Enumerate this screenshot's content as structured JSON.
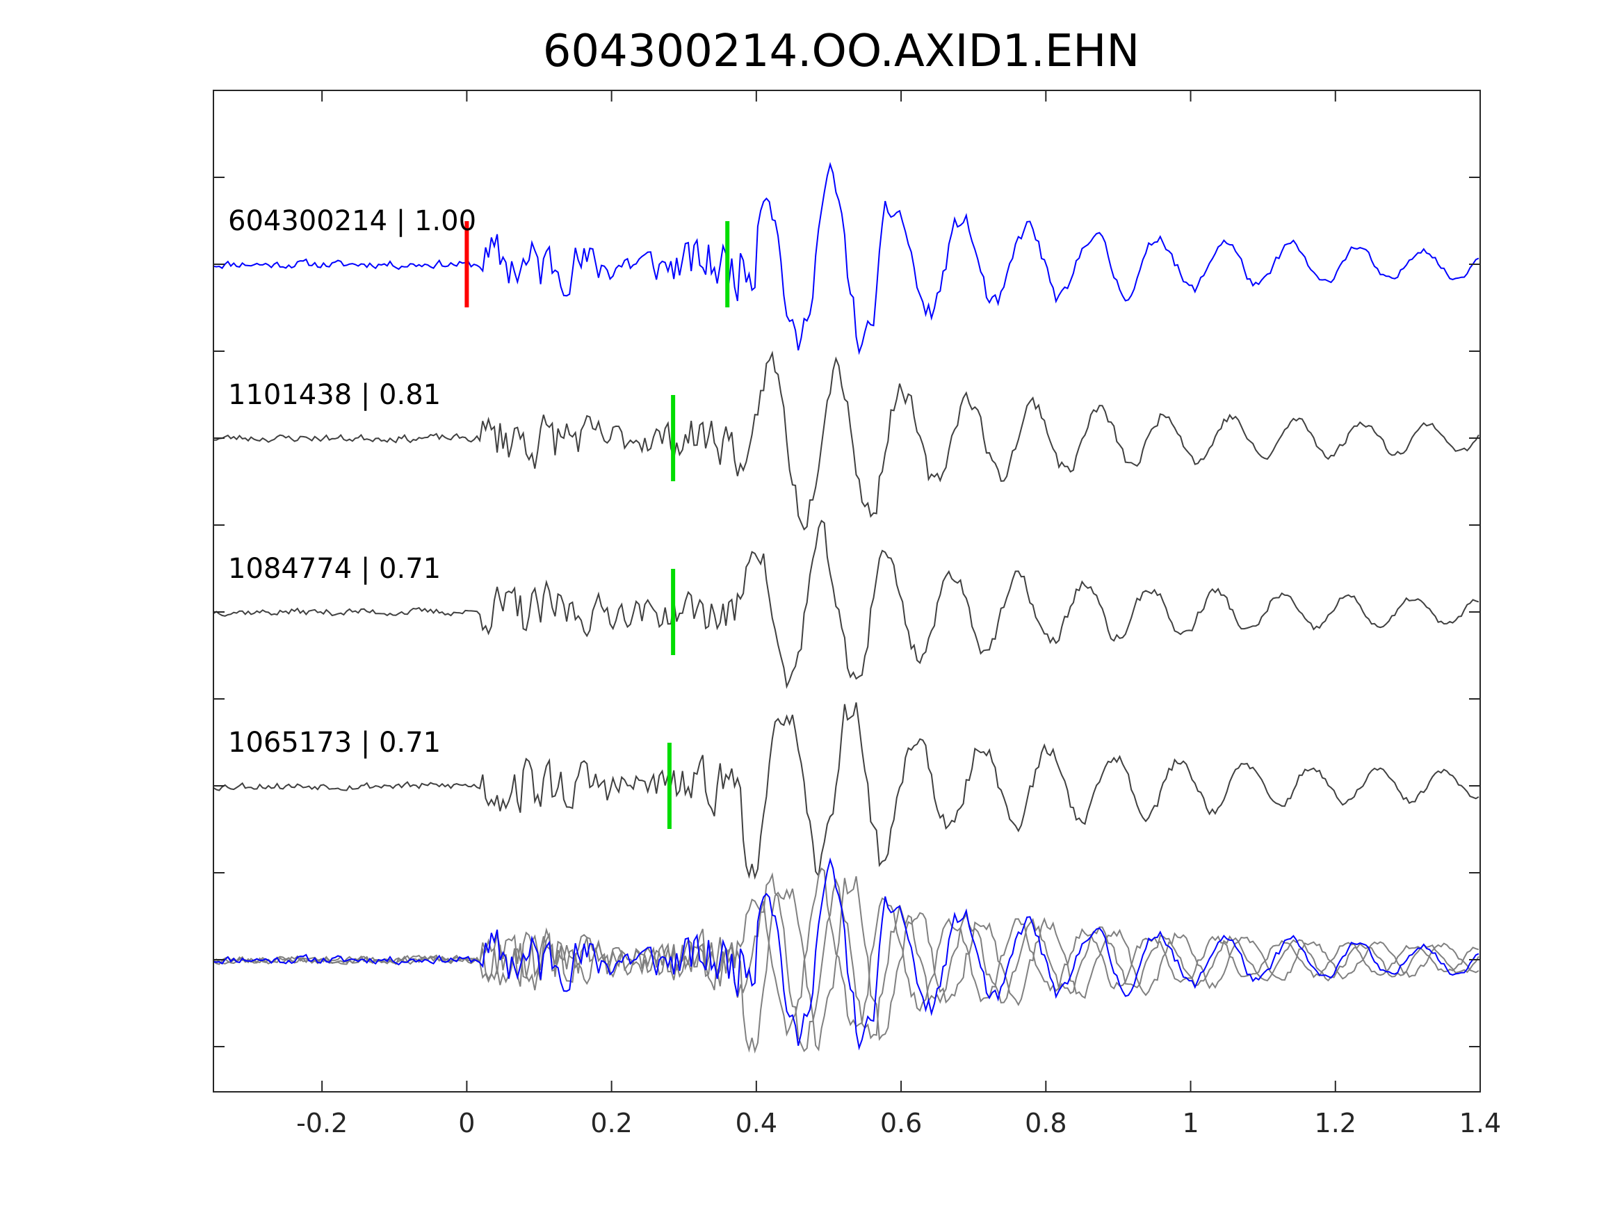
{
  "chart_data": {
    "type": "line",
    "title": "604300214.OO.AXID1.EHN",
    "xlabel": "",
    "ylabel": "",
    "xlim": [
      -0.35,
      1.4
    ],
    "xticks": [
      "-0.2",
      "0",
      "0.2",
      "0.4",
      "0.6",
      "0.8",
      "1",
      "1.2",
      "1.4"
    ],
    "xtick_values": [
      -0.2,
      0,
      0.2,
      0.4,
      0.6,
      0.8,
      1,
      1.2,
      1.4
    ],
    "grid": false,
    "colors": {
      "master": "#0000ff",
      "correlated": "#404040",
      "overlay_gray": "#808080",
      "p_pick": "#ff0000",
      "s_pick": "#00dd00",
      "axis": "#262626"
    },
    "traces": [
      {
        "label": "604300214 | 1.00",
        "id": "604300214",
        "cc": 1.0,
        "color": "master",
        "amplitude": 1.15,
        "p_pick": 0.0,
        "s_pick": 0.36,
        "seed": 11,
        "s_arrival": 0.4
      },
      {
        "label": "1101438 | 0.81",
        "id": "1101438",
        "cc": 0.81,
        "color": "correlated",
        "amplitude": 1.05,
        "s_pick": 0.285,
        "seed": 23,
        "s_arrival": 0.38
      },
      {
        "label": "1084774 | 0.71",
        "id": "1084774",
        "cc": 0.71,
        "color": "correlated",
        "amplitude": 1.05,
        "s_pick": 0.285,
        "seed": 37,
        "s_arrival": 0.38
      },
      {
        "label": "1065173 | 0.71",
        "id": "1065173",
        "cc": 0.71,
        "color": "correlated",
        "amplitude": 1.05,
        "s_pick": 0.28,
        "seed": 53,
        "s_arrival": 0.38
      }
    ],
    "overlay": {
      "description_in_plot": "",
      "members": [
        "1101438",
        "1084774",
        "1065173",
        "604300214"
      ]
    }
  }
}
